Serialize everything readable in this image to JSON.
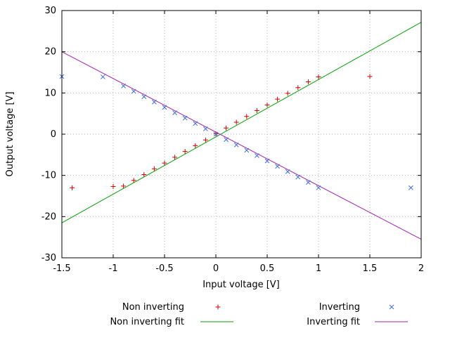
{
  "chart_data": {
    "type": "scatter",
    "title": "",
    "xlabel": "Input voltage [V]",
    "ylabel": "Output voltage [V]",
    "xlim": [
      -1.5,
      2
    ],
    "ylim": [
      -30,
      30
    ],
    "xticks": [
      -1.5,
      -1,
      -0.5,
      0,
      0.5,
      1,
      1.5,
      2
    ],
    "yticks": [
      -30,
      -20,
      -10,
      0,
      10,
      20,
      30
    ],
    "grid": true,
    "legend_position": "below-plot",
    "colors": {
      "non_inverting_points": "#d00000",
      "inverting_points": "#3a6fd8",
      "non_inverting_fit": "#00a000",
      "inverting_fit": "#a020b0",
      "grid": "#b5b5b5",
      "border": "#000000"
    },
    "series": [
      {
        "name": "Non inverting",
        "kind": "points",
        "marker": "plus",
        "color": "#d00000",
        "points": [
          [
            -1.4,
            -13.0
          ],
          [
            -1.0,
            -12.7
          ],
          [
            -0.9,
            -12.6
          ],
          [
            -0.8,
            -11.2
          ],
          [
            -0.7,
            -9.8
          ],
          [
            -0.6,
            -8.4
          ],
          [
            -0.5,
            -7.0
          ],
          [
            -0.4,
            -5.6
          ],
          [
            -0.3,
            -4.2
          ],
          [
            -0.2,
            -2.8
          ],
          [
            -0.1,
            -1.4
          ],
          [
            0.0,
            0.1
          ],
          [
            0.1,
            1.5
          ],
          [
            0.2,
            2.9
          ],
          [
            0.3,
            4.3
          ],
          [
            0.4,
            5.7
          ],
          [
            0.5,
            7.1
          ],
          [
            0.6,
            8.5
          ],
          [
            0.7,
            9.9
          ],
          [
            0.8,
            11.3
          ],
          [
            0.9,
            12.7
          ],
          [
            1.0,
            13.9
          ],
          [
            1.5,
            14.0
          ]
        ]
      },
      {
        "name": "Inverting",
        "kind": "points",
        "marker": "cross",
        "color": "#3a6fd8",
        "points": [
          [
            -1.5,
            14.0
          ],
          [
            -1.1,
            13.9
          ],
          [
            -0.9,
            11.7
          ],
          [
            -0.8,
            10.4
          ],
          [
            -0.7,
            9.1
          ],
          [
            -0.6,
            7.8
          ],
          [
            -0.5,
            6.5
          ],
          [
            -0.4,
            5.2
          ],
          [
            -0.3,
            3.9
          ],
          [
            -0.2,
            2.6
          ],
          [
            -0.1,
            1.3
          ],
          [
            0.0,
            0.0
          ],
          [
            0.1,
            -1.3
          ],
          [
            0.2,
            -2.6
          ],
          [
            0.3,
            -3.9
          ],
          [
            0.4,
            -5.2
          ],
          [
            0.5,
            -6.5
          ],
          [
            0.6,
            -7.8
          ],
          [
            0.7,
            -9.1
          ],
          [
            0.8,
            -10.4
          ],
          [
            0.9,
            -11.7
          ],
          [
            1.0,
            -13.0
          ],
          [
            1.9,
            -13.0
          ]
        ]
      },
      {
        "name": "Non inverting fit",
        "kind": "line",
        "color": "#00a000",
        "slope": 13.9,
        "intercept": -0.65
      },
      {
        "name": "Inverting fit",
        "kind": "line",
        "color": "#a020b0",
        "slope": -13.0,
        "intercept": 0.5
      }
    ]
  }
}
